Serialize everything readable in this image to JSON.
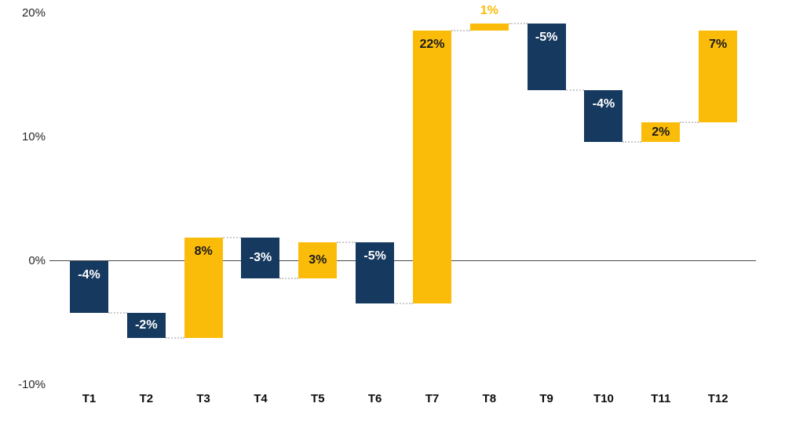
{
  "chart_data": {
    "type": "bar",
    "subtype": "waterfall",
    "title": "",
    "xlabel": "",
    "ylabel": "",
    "grid": "off",
    "legend": "none",
    "categories": [
      "T1",
      "T2",
      "T3",
      "T4",
      "T5",
      "T6",
      "T7",
      "T8",
      "T9",
      "T10",
      "T11",
      "T12"
    ],
    "values": [
      -4,
      -2,
      8,
      -3,
      3,
      -5,
      22,
      1,
      -5,
      -4,
      2,
      7
    ],
    "value_labels": [
      "-4%",
      "-2%",
      "8%",
      "-3%",
      "3%",
      "-5%",
      "22%",
      "1%",
      "-5%",
      "-4%",
      "2%",
      "7%"
    ],
    "cumulative_start": [
      0,
      -4.2,
      -6.2,
      1.9,
      -1.4,
      1.5,
      -3.4,
      18.6,
      19.2,
      13.8,
      9.6,
      11.2
    ],
    "cumulative_end": [
      -4.2,
      -6.2,
      1.9,
      -1.4,
      1.5,
      -3.4,
      18.6,
      19.2,
      13.8,
      9.6,
      11.2,
      18.6
    ],
    "y_axis": {
      "range": [
        -10,
        21
      ],
      "ticks": [
        {
          "label": "20%",
          "value": 20
        },
        {
          "label": "10%",
          "value": 10
        },
        {
          "label": "0%",
          "value": 0
        },
        {
          "label": "-10%",
          "value": -10
        }
      ]
    },
    "colors": {
      "increase": "#FBBC09",
      "decrease": "#15395F",
      "label_on_increase": "#1A1A1A",
      "label_on_decrease": "#FFFFFF",
      "outside_label": "#FBBC09",
      "axis_line": "#4A4A4A",
      "connector": "#CCCCCC",
      "tick_label": "#262626",
      "category_label": "#0D0D0D"
    }
  }
}
